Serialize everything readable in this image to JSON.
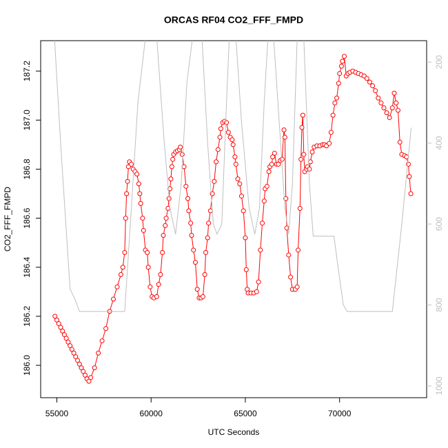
{
  "chart_data": {
    "type": "line",
    "title": "ORCAS RF04 CO2_FFF_FMPD",
    "x_label": "UTC Seconds",
    "y_label": "CO2_FFF_FMPD",
    "xlim": [
      54142,
      74618
    ],
    "xticks": [
      55000,
      60000,
      65000,
      70000
    ],
    "ylim": [
      185.868,
      187.324
    ],
    "yticks": [
      {
        "value": 186,
        "label": "186.0"
      },
      186.2,
      186.4,
      186.6,
      186.8,
      {
        "value": 187,
        "label": "187.0"
      },
      187.2
    ],
    "y2lim": [
      1029,
      147
    ],
    "y2ticks": [
      200,
      400,
      600,
      800,
      1000
    ],
    "series": [
      {
        "color": "#ff0000",
        "marker": "circle",
        "x": [
          54900,
          55000,
          55100,
          55200,
          55300,
          55400,
          55500,
          55600,
          55700,
          55800,
          55900,
          56000,
          56100,
          56200,
          56300,
          56400,
          56500,
          56600,
          56700,
          56800,
          57000,
          57200,
          57400,
          57600,
          57800,
          58000,
          58200,
          58400,
          58500,
          58600,
          58650,
          58700,
          58750,
          58800,
          58850,
          58950,
          59050,
          59150,
          59250,
          59350,
          59400,
          59450,
          59550,
          59600,
          59700,
          59800,
          59850,
          59950,
          60050,
          60150,
          60300,
          60400,
          60500,
          60600,
          60650,
          60750,
          60800,
          60900,
          60950,
          61000,
          61050,
          61100,
          61150,
          61200,
          61300,
          61400,
          61500,
          61550,
          61650,
          61750,
          61850,
          61950,
          62000,
          62100,
          62150,
          62250,
          62350,
          62450,
          62550,
          62650,
          62750,
          62850,
          62900,
          63000,
          63050,
          63150,
          63250,
          63350,
          63450,
          63550,
          63650,
          63700,
          63800,
          63900,
          64000,
          64100,
          64200,
          64300,
          64350,
          64450,
          64500,
          64600,
          64700,
          64800,
          64900,
          65000,
          65050,
          65100,
          65150,
          65300,
          65450,
          65600,
          65700,
          65800,
          65900,
          66000,
          66050,
          66150,
          66250,
          66300,
          66400,
          66450,
          66550,
          66650,
          66750,
          66850,
          66950,
          67050,
          67100,
          67150,
          67200,
          67300,
          67400,
          67500,
          67650,
          67750,
          67800,
          67900,
          67950,
          68000,
          68050,
          68100,
          68150,
          68250,
          68300,
          68400,
          68450,
          68550,
          68650,
          68800,
          68950,
          69100,
          69200,
          69300,
          69450,
          69550,
          69650,
          69750,
          69850,
          69950,
          70000,
          70100,
          70150,
          70250,
          70350,
          70450,
          70550,
          70700,
          70850,
          71000,
          71150,
          71300,
          71450,
          71600,
          71750,
          71900,
          72050,
          72200,
          72350,
          72500,
          72650,
          72800,
          72900,
          73000,
          73100,
          73200,
          73300,
          73450,
          73550,
          73650,
          73700,
          73780
        ],
        "values": [
          186.2,
          186.185,
          186.17,
          186.155,
          186.14,
          186.125,
          186.11,
          186.095,
          186.08,
          186.065,
          186.05,
          186.035,
          186.02,
          186.005,
          185.99,
          185.975,
          185.96,
          185.945,
          185.935,
          185.95,
          185.99,
          186.05,
          186.1,
          186.15,
          186.22,
          186.27,
          186.32,
          186.37,
          186.4,
          186.46,
          186.6,
          186.7,
          186.75,
          186.81,
          186.83,
          186.82,
          186.8,
          186.79,
          186.78,
          186.74,
          186.7,
          186.66,
          186.6,
          186.55,
          186.47,
          186.46,
          186.4,
          186.32,
          186.28,
          186.275,
          186.28,
          186.33,
          186.37,
          186.46,
          186.53,
          186.57,
          186.6,
          186.64,
          186.68,
          186.72,
          186.76,
          186.81,
          186.84,
          186.86,
          186.87,
          186.875,
          186.88,
          186.89,
          186.86,
          186.81,
          186.73,
          186.68,
          186.63,
          186.58,
          186.53,
          186.47,
          186.42,
          186.31,
          186.275,
          186.275,
          186.28,
          186.37,
          186.46,
          186.52,
          186.58,
          186.63,
          186.7,
          186.75,
          186.83,
          186.88,
          186.93,
          186.965,
          186.99,
          186.995,
          186.99,
          186.95,
          186.93,
          186.92,
          186.9,
          186.85,
          186.82,
          186.76,
          186.74,
          186.69,
          186.63,
          186.52,
          186.39,
          186.31,
          186.295,
          186.295,
          186.295,
          186.3,
          186.34,
          186.47,
          186.58,
          186.67,
          186.72,
          186.73,
          186.79,
          186.81,
          186.82,
          186.85,
          186.865,
          186.82,
          186.82,
          186.835,
          186.84,
          186.96,
          186.93,
          186.68,
          186.56,
          186.45,
          186.36,
          186.31,
          186.31,
          186.32,
          186.47,
          186.64,
          186.84,
          186.97,
          187.02,
          186.86,
          186.79,
          186.8,
          186.81,
          186.8,
          186.83,
          186.87,
          186.89,
          186.895,
          186.895,
          186.9,
          186.9,
          186.895,
          186.905,
          186.95,
          187.02,
          187.07,
          187.09,
          187.15,
          187.19,
          187.22,
          187.24,
          187.26,
          187.18,
          187.19,
          187.195,
          187.2,
          187.195,
          187.19,
          187.185,
          187.18,
          187.17,
          187.155,
          187.14,
          187.12,
          187.09,
          187.07,
          187.05,
          187.03,
          187.01,
          187.05,
          187.11,
          187.07,
          187.04,
          186.91,
          186.86,
          186.855,
          186.85,
          186.82,
          186.77,
          186.7
        ]
      },
      {
        "color": "#bebebe",
        "axis": "y2",
        "x": [
          54850,
          55200,
          55700,
          56000,
          56200,
          58600,
          58900,
          59300,
          59700,
          60300,
          60700,
          61000,
          61300,
          61600,
          61900,
          62200,
          62700,
          63000,
          63300,
          63500,
          63750,
          64000,
          64150,
          64500,
          64800,
          65200,
          65500,
          65750,
          66000,
          66200,
          66500,
          66800,
          67100,
          67300,
          67500,
          67750,
          68100,
          68400,
          68600,
          69700,
          69900,
          70200,
          70400,
          72800,
          73300,
          73800
        ],
        "values": [
          120,
          400,
          760,
          790,
          816,
          816,
          600,
          300,
          140,
          140,
          400,
          560,
          625,
          500,
          250,
          140,
          140,
          400,
          600,
          625,
          600,
          300,
          140,
          140,
          350,
          560,
          625,
          560,
          300,
          140,
          140,
          350,
          560,
          625,
          500,
          140,
          140,
          500,
          630,
          630,
          700,
          800,
          816,
          816,
          600,
          362
        ]
      }
    ]
  }
}
